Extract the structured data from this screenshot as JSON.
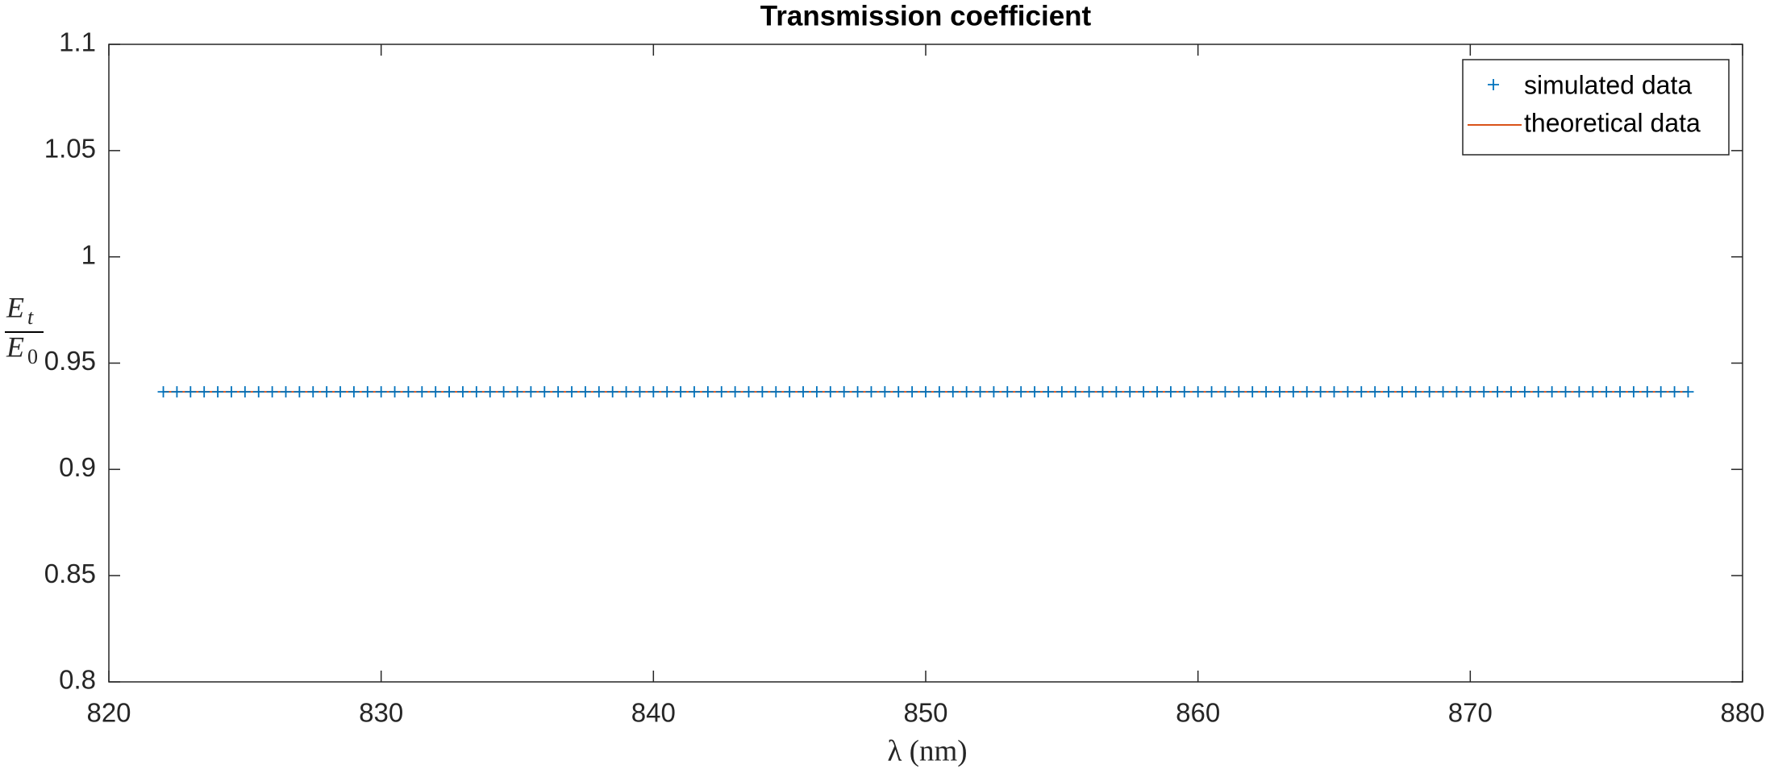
{
  "chart_data": {
    "type": "scatter_line",
    "title": "Transmission coefficient",
    "xlabel": "λ (nm)",
    "ylabel_numerator": {
      "base": "E",
      "sub": "t"
    },
    "ylabel_denominator": {
      "base": "E",
      "sub": "0"
    },
    "xlim": [
      820,
      880
    ],
    "xticks": [
      820,
      830,
      840,
      850,
      860,
      870,
      880
    ],
    "ylim": [
      0.8,
      1.1
    ],
    "yticks": [
      0.8,
      0.85,
      0.9,
      0.95,
      1,
      1.05,
      1.1
    ],
    "legend": "upper right",
    "series": [
      {
        "name": "simulated data",
        "color": "#0072bd",
        "marker": "+",
        "x": [
          822,
          822.5,
          823,
          823.5,
          824,
          824.5,
          825,
          825.5,
          826,
          826.5,
          827,
          827.5,
          828,
          828.5,
          829,
          829.5,
          830,
          830.5,
          831,
          831.5,
          832,
          832.5,
          833,
          833.5,
          834,
          834.5,
          835,
          835.5,
          836,
          836.5,
          837,
          837.5,
          838,
          838.5,
          839,
          839.5,
          840,
          840.5,
          841,
          841.5,
          842,
          842.5,
          843,
          843.5,
          844,
          844.5,
          845,
          845.5,
          846,
          846.5,
          847,
          847.5,
          848,
          848.5,
          849,
          849.5,
          850,
          850.5,
          851,
          851.5,
          852,
          852.5,
          853,
          853.5,
          854,
          854.5,
          855,
          855.5,
          856,
          856.5,
          857,
          857.5,
          858,
          858.5,
          859,
          859.5,
          860,
          860.5,
          861,
          861.5,
          862,
          862.5,
          863,
          863.5,
          864,
          864.5,
          865,
          865.5,
          866,
          866.5,
          867,
          867.5,
          868,
          868.5,
          869,
          869.5,
          870,
          870.5,
          871,
          871.5,
          872,
          872.5,
          873,
          873.5,
          874,
          874.5,
          875,
          875.5,
          876,
          876.5,
          877,
          877.5,
          878
        ],
        "values": [
          0.9365,
          0.9365,
          0.9365,
          0.9365,
          0.9365,
          0.9365,
          0.9365,
          0.9365,
          0.9365,
          0.9365,
          0.9365,
          0.9365,
          0.9365,
          0.9365,
          0.9365,
          0.9365,
          0.9365,
          0.9365,
          0.9365,
          0.9365,
          0.9365,
          0.9365,
          0.9365,
          0.9365,
          0.9365,
          0.9365,
          0.9365,
          0.9365,
          0.9365,
          0.9365,
          0.9365,
          0.9365,
          0.9365,
          0.9365,
          0.9365,
          0.9365,
          0.9365,
          0.9365,
          0.9365,
          0.9365,
          0.9365,
          0.9365,
          0.9365,
          0.9365,
          0.9365,
          0.9365,
          0.9365,
          0.9365,
          0.9365,
          0.9365,
          0.9365,
          0.9365,
          0.9365,
          0.9365,
          0.9365,
          0.9365,
          0.9365,
          0.9365,
          0.9365,
          0.9365,
          0.9365,
          0.9365,
          0.9365,
          0.9365,
          0.9365,
          0.9365,
          0.9365,
          0.9365,
          0.9365,
          0.9365,
          0.9365,
          0.9365,
          0.9365,
          0.9365,
          0.9365,
          0.9365,
          0.9365,
          0.9365,
          0.9365,
          0.9365,
          0.9365,
          0.9365,
          0.9365,
          0.9365,
          0.9365,
          0.9365,
          0.9365,
          0.9365,
          0.9365,
          0.9365,
          0.9365,
          0.9365,
          0.9365,
          0.9365,
          0.9365,
          0.9365,
          0.9365,
          0.9365,
          0.9365,
          0.9365,
          0.9365,
          0.9365,
          0.9365,
          0.9365,
          0.9365,
          0.9365,
          0.9365,
          0.9365,
          0.9365,
          0.9365,
          0.9365,
          0.9365,
          0.9365
        ]
      },
      {
        "name": "theoretical data",
        "color": "#d95319",
        "marker": "line",
        "x": [
          822,
          878
        ],
        "values": [
          0.9365,
          0.9365
        ]
      }
    ]
  }
}
